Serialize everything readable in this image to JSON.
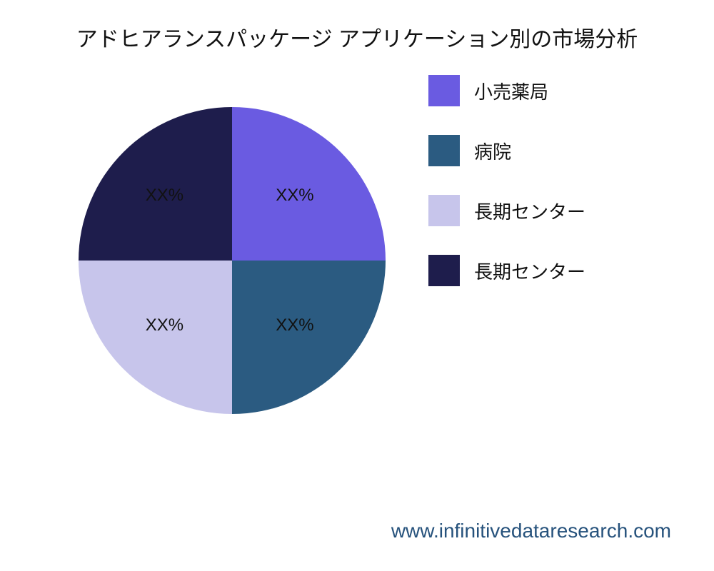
{
  "title": "アドヒアランスパッケージ アプリケーション別の市場分析",
  "footer": "www.infinitivedataresearch.com",
  "chart": {
    "type": "pie",
    "background_color": "#ffffff",
    "title_fontsize": 30,
    "title_color": "#111111",
    "label_fontsize": 24,
    "label_color": "#111111",
    "legend_fontsize": 26,
    "legend_position": "right",
    "footer_color": "#26527c",
    "footer_fontsize": 28,
    "slices": [
      {
        "label": "小売薬局",
        "value": 25,
        "display": "XX%",
        "color": "#6a5be1"
      },
      {
        "label": "病院",
        "value": 25,
        "display": "XX%",
        "color": "#2b5b81"
      },
      {
        "label": "長期センター",
        "value": 25,
        "display": "XX%",
        "color": "#c7c5eb"
      },
      {
        "label": "長期センター",
        "value": 25,
        "display": "XX%",
        "color": "#1e1d4c"
      }
    ]
  }
}
